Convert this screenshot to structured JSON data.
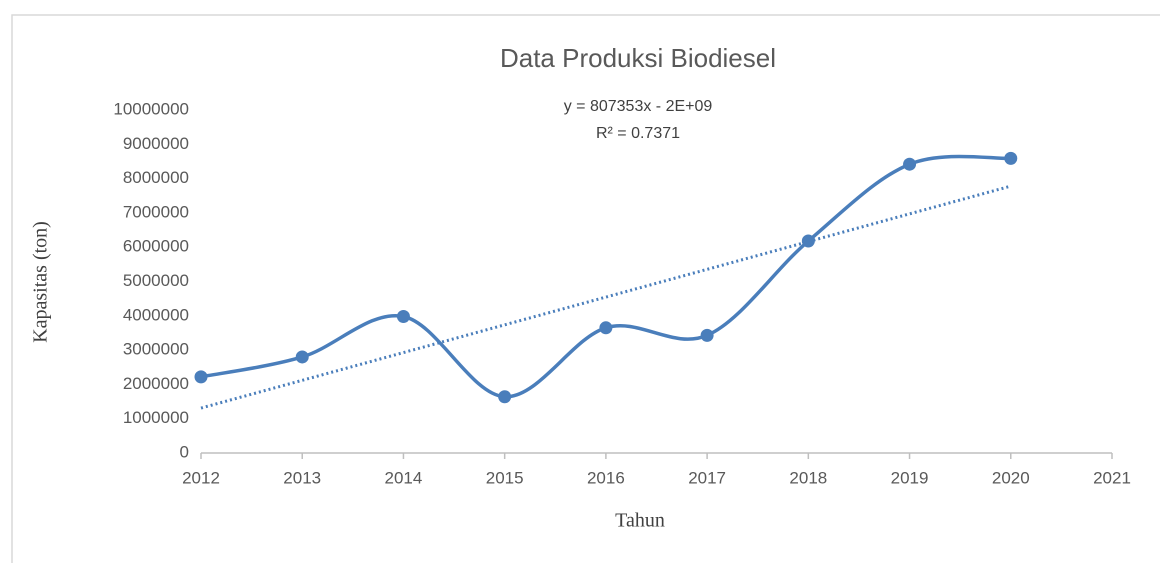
{
  "chart_data": {
    "type": "line",
    "title": "Data Produksi Biodiesel",
    "x_label": "Tahun",
    "y_label": "Kapasitas (ton)",
    "x": [
      2012,
      2013,
      2014,
      2015,
      2016,
      2017,
      2018,
      2019,
      2020
    ],
    "series": [
      {
        "name": "Kapasitas",
        "color": "#4a7ebb",
        "values": [
          2220000,
          2800000,
          3980000,
          1640000,
          3650000,
          3430000,
          6180000,
          8420000,
          8590000
        ]
      }
    ],
    "trendline": {
      "type": "linear",
      "color": "#4a7ebb",
      "equation": "y = 807353x - 2E+09",
      "r2": "R² = 0.7371"
    },
    "smooth": true,
    "xlim": [
      2012,
      2021
    ],
    "xticks": [
      2012,
      2013,
      2014,
      2015,
      2016,
      2017,
      2018,
      2019,
      2020,
      2021
    ],
    "ylim": [
      0,
      10000000
    ],
    "yticks": [
      0,
      1000000,
      2000000,
      3000000,
      4000000,
      5000000,
      6000000,
      7000000,
      8000000,
      9000000,
      10000000
    ],
    "grid": false
  }
}
